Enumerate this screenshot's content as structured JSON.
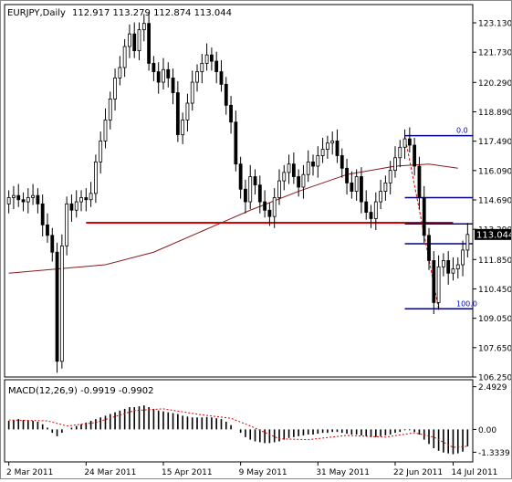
{
  "header": {
    "symbol_label": "EURJPY,Daily",
    "ohlc_label": "112.917 113.279 112.874 113.044"
  },
  "macd_header": {
    "label": "MACD(12,26,9) -0.9919 -0.9902"
  },
  "colors": {
    "background": "#ffffff",
    "candle_fill_bull": "#ffffff",
    "candle_fill_bear": "#000000",
    "candle_wick": "#000000",
    "moving_average": "#8b1a1a",
    "support_line": "#e00000",
    "fibonacci_line": "#00008b",
    "fibonacci_label": "#0000c8",
    "macd_signal": "#e00000",
    "current_price_bg": "#000000",
    "current_price_text": "#ffffff"
  },
  "chart_data": [
    {
      "type": "candlestick",
      "title": "EURJPY,Daily",
      "ohlc_readout": [
        112.917,
        113.279,
        112.874,
        113.044
      ],
      "current_price_label": "113.044",
      "ylim": [
        106.25,
        124.0
      ],
      "y_ticks": [
        "123.130",
        "121.730",
        "120.290",
        "118.890",
        "117.490",
        "116.090",
        "114.690",
        "113.290",
        "111.850",
        "110.450",
        "109.050",
        "107.650",
        "106.250"
      ],
      "x_ticks": [
        "2 Mar 2011",
        "24 Mar 2011",
        "15 Apr 2011",
        "9 May 2011",
        "31 May 2011",
        "22 Jun 2011",
        "14 Jul 2011"
      ],
      "overlays": {
        "moving_average_trend": [
          [
            0,
            111.2
          ],
          [
            20,
            111.6
          ],
          [
            30,
            112.2
          ],
          [
            40,
            113.2
          ],
          [
            50,
            114.2
          ],
          [
            60,
            115.1
          ],
          [
            70,
            115.9
          ],
          [
            80,
            116.3
          ],
          [
            87,
            116.4
          ],
          [
            93,
            116.2
          ]
        ],
        "horizontal_support": {
          "price": 113.6,
          "from_index": 16,
          "to_index": 92
        },
        "fibonacci_levels": [
          {
            "label": "0.0",
            "price": 117.75
          },
          {
            "label": "",
            "price": 114.8
          },
          {
            "label": "",
            "price": 113.55
          },
          {
            "label": "",
            "price": 112.6
          },
          {
            "label": "100.0",
            "price": 109.5
          }
        ]
      },
      "closes_by_bar": [
        114.8,
        114.9,
        114.7,
        114.6,
        114.8,
        114.9,
        114.5,
        113.5,
        113.0,
        112.2,
        107.0,
        112.5,
        114.5,
        114.2,
        114.6,
        114.8,
        114.7,
        115.0,
        116.5,
        117.5,
        118.5,
        119.5,
        120.5,
        121.0,
        122.0,
        122.6,
        121.8,
        122.8,
        123.1,
        121.2,
        120.8,
        120.3,
        120.9,
        120.5,
        119.8,
        117.8,
        118.5,
        119.3,
        120.3,
        120.8,
        121.2,
        121.6,
        121.3,
        120.8,
        120.2,
        119.2,
        118.4,
        116.4,
        115.2,
        114.6,
        115.8,
        115.4,
        114.6,
        114.2,
        113.9,
        114.8,
        115.6,
        116.0,
        116.4,
        115.8,
        115.3,
        115.9,
        116.5,
        116.3,
        116.8,
        117.1,
        117.4,
        117.5,
        116.8,
        116.2,
        115.5,
        115.1,
        115.8,
        114.6,
        114.1,
        113.8,
        114.6,
        115.1,
        115.5,
        116.1,
        116.7,
        117.2,
        117.6,
        117.3,
        116.3,
        114.8,
        113.0,
        111.8,
        109.8,
        111.5,
        111.8,
        111.2,
        111.4,
        111.6,
        112.3,
        113.044
      ]
    },
    {
      "type": "bar",
      "title": "MACD(12,26,9) -0.9919 -0.9902",
      "ylim": [
        -1.9,
        2.9
      ],
      "y_ticks": [
        "2.4929",
        "0.00",
        "-1.3339"
      ],
      "histogram": [
        0.5,
        0.55,
        0.6,
        0.55,
        0.5,
        0.5,
        0.45,
        0.3,
        0.1,
        -0.2,
        -0.4,
        -0.2,
        0.0,
        0.1,
        0.2,
        0.3,
        0.4,
        0.5,
        0.6,
        0.7,
        0.8,
        0.9,
        1.0,
        1.1,
        1.2,
        1.3,
        1.3,
        1.35,
        1.4,
        1.3,
        1.2,
        1.1,
        1.05,
        1.0,
        0.95,
        0.9,
        0.8,
        0.75,
        0.7,
        0.7,
        0.7,
        0.72,
        0.7,
        0.65,
        0.6,
        0.45,
        0.25,
        0.0,
        -0.2,
        -0.45,
        -0.6,
        -0.7,
        -0.75,
        -0.8,
        -0.8,
        -0.75,
        -0.7,
        -0.6,
        -0.5,
        -0.45,
        -0.4,
        -0.35,
        -0.3,
        -0.3,
        -0.25,
        -0.2,
        -0.2,
        -0.15,
        -0.15,
        -0.2,
        -0.25,
        -0.3,
        -0.3,
        -0.35,
        -0.4,
        -0.45,
        -0.45,
        -0.4,
        -0.35,
        -0.3,
        -0.2,
        -0.15,
        -0.05,
        -0.05,
        -0.15,
        -0.3,
        -0.6,
        -0.85,
        -1.1,
        -1.25,
        -1.35,
        -1.4,
        -1.45,
        -1.4,
        -1.3,
        -0.99
      ],
      "signal_trend": [
        [
          0,
          0.55
        ],
        [
          8,
          0.5
        ],
        [
          12,
          0.2
        ],
        [
          18,
          0.4
        ],
        [
          26,
          1.1
        ],
        [
          32,
          1.2
        ],
        [
          40,
          0.85
        ],
        [
          46,
          0.65
        ],
        [
          50,
          0.2
        ],
        [
          56,
          -0.55
        ],
        [
          62,
          -0.6
        ],
        [
          70,
          -0.35
        ],
        [
          78,
          -0.45
        ],
        [
          84,
          -0.2
        ],
        [
          88,
          -0.45
        ],
        [
          92,
          -1.05
        ],
        [
          95,
          -0.99
        ]
      ]
    }
  ]
}
